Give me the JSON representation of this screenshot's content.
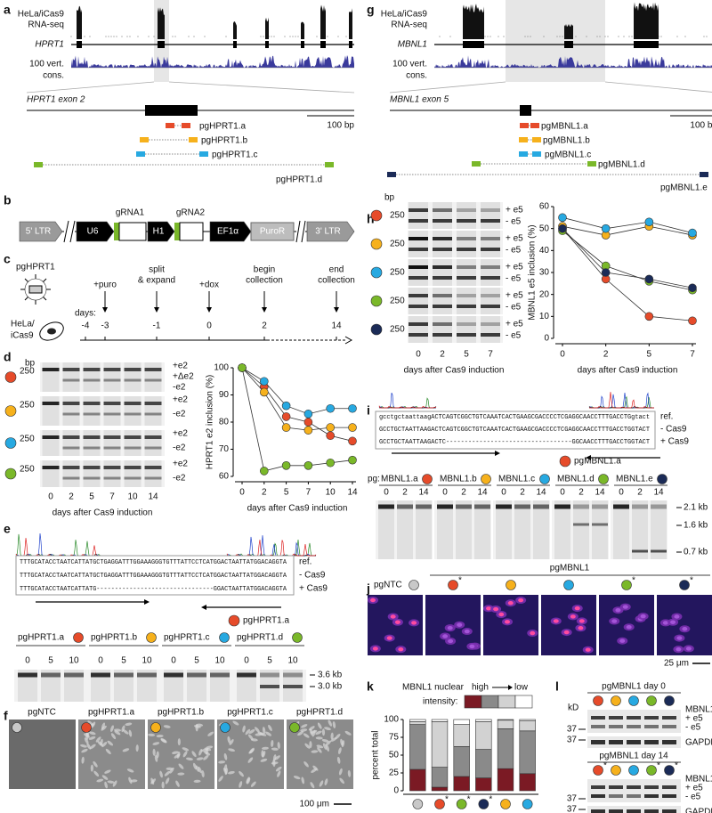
{
  "panels": {
    "letters": [
      "a",
      "b",
      "c",
      "d",
      "e",
      "f",
      "g",
      "h",
      "i",
      "j",
      "k",
      "l"
    ],
    "a": {
      "track_label": [
        "HeLa/iCas9",
        "RNA-seq"
      ],
      "gene": "HPRT1",
      "cons_label": [
        "100 vert.",
        "cons."
      ],
      "exon": "HPRT1 exon 2",
      "scale": "100 bp",
      "guides": [
        "pgHPRT1.a",
        "pgHPRT1.b",
        "pgHPRT1.c",
        "pgHPRT1.d"
      ]
    },
    "g": {
      "track_label": [
        "HeLa/iCas9",
        "RNA-seq"
      ],
      "gene": "MBNL1",
      "cons_label": [
        "100 vert.",
        "cons."
      ],
      "exon": "MBNL1 exon 5",
      "scale": "100 bp",
      "guides": [
        "pgMBNL1.a",
        "pgMBNL1.b",
        "pgMBNL1.c",
        "pgMBNL1.d",
        "pgMBNL1.e"
      ]
    },
    "b": {
      "elements": [
        "5' LTR",
        "U6",
        "gRNA1",
        "H1",
        "gRNA2",
        "EF1α",
        "PuroR",
        "3' LTR"
      ]
    },
    "c": {
      "vector": "pgHPRT1",
      "cells": [
        "HeLa/",
        "iCas9"
      ],
      "days_label": "days:",
      "days": [
        "-4",
        "-3",
        "-1",
        "0",
        "2",
        "14"
      ],
      "events": [
        [
          "+puro"
        ],
        [
          "split",
          "& expand"
        ],
        [
          "+dox"
        ],
        [
          "begin",
          "collection"
        ],
        [
          "end",
          "collection"
        ]
      ]
    },
    "d": {
      "unit": "bp",
      "sizes": [
        "250",
        "250",
        "250",
        "250"
      ],
      "band_labels": [
        [
          "+e2",
          "+Δe2",
          "-e2"
        ],
        [
          "+e2",
          "-e2"
        ],
        [
          "+e2",
          "-e2"
        ],
        [
          "+e2",
          "-e2"
        ]
      ],
      "lanes": [
        "0",
        "2",
        "5",
        "7",
        "10",
        "14"
      ],
      "x_label": "days after Cas9 induction"
    },
    "e": {
      "ref": "TTTGCATACCTAATCATTATGCTGAGGATTTGGAAAGGGTGTTTATTCCTCATGGACTAATTATGGACAGGTA",
      "minus": "TTTGCATACCTAATCATTATGCTGAGGATTTGGAAAGGGTGTTTATTCCTCATGGACTAATTATGGACAGGTA",
      "plus": "TTTGCATACCTAATCATTATG--------------------------------GGACTAATTATGGACAGGTA",
      "row_labels": [
        "ref.",
        "- Cas9",
        "+ Cas9"
      ],
      "guide": "pgHPRT1.a",
      "gel_groups": [
        "pgHPRT1.a",
        "pgHPRT1.b",
        "pgHPRT1.c",
        "pgHPRT1.d"
      ],
      "lanes": [
        "0",
        "5",
        "10"
      ],
      "sizes": [
        "3.6 kb",
        "3.0 kb"
      ]
    },
    "f": {
      "labels": [
        "pgNTC",
        "pgHPRT1.a",
        "pgHPRT1.b",
        "pgHPRT1.c",
        "pgHPRT1.d"
      ],
      "scale": "100 μm"
    },
    "h": {
      "unit": "bp",
      "sizes": [
        "250",
        "250",
        "250",
        "250",
        "250"
      ],
      "band_labels": [
        [
          "+ e5",
          "- e5"
        ],
        [
          "+ e5",
          "- e5"
        ],
        [
          "+ e5",
          "- e5"
        ],
        [
          "+ e5",
          "- e5"
        ],
        [
          "+ e5",
          "- e5"
        ]
      ],
      "lanes": [
        "0",
        "2",
        "5",
        "7"
      ],
      "x_label": "days after Cas9 induction"
    },
    "i": {
      "ref": "gcctgctaattaagACTCAGTCGGCTGTCAAATCACTGAAGCGACCCCTCGAGGCAACCTTTGACCTGgtact",
      "minus": "GCCTGCTAATTAAGACTCAGTCGGCTGTCAAATCACTGAAGCGACCCCTCGAGGCAACCTTTGACCTGGTACT",
      "plus": "GCCTGCTAATTAAGACTC----------------------------------GGCAACCTTTGACCTGGTACT",
      "row_labels": [
        "ref.",
        "- Cas9",
        "+ Cas9"
      ],
      "guide": "pgMBNL1.a",
      "gel_prefix": "pg:",
      "gel_groups": [
        "MBNL1.a",
        "MBNL1.b",
        "MBNL1.c",
        "MBNL1.d",
        "MBNL1.e"
      ],
      "lanes": [
        "0",
        "2",
        "14"
      ],
      "sizes": [
        "2.1 kb",
        "1.6 kb",
        "0.7 kb"
      ]
    },
    "j": {
      "labels": [
        "pgNTC",
        "pgMBNL1"
      ],
      "stars": [
        "*",
        "*",
        "*"
      ],
      "scale": "25 μm"
    },
    "k": {
      "legend_title": "MBNL1 nuclear",
      "legend_label": "intensity:",
      "high": "high",
      "low": "low",
      "stars": [
        "*",
        "*",
        "*"
      ]
    },
    "l": {
      "blots": [
        {
          "title": "pgMBNL1 day 0",
          "unit": "kD",
          "markers": [
            "37",
            "37"
          ],
          "labels": [
            "MBNL1",
            "+ e5",
            "- e5",
            "GAPDH"
          ]
        },
        {
          "title": "pgMBNL1 day 14",
          "markers": [
            "37",
            "37"
          ],
          "labels": [
            "MBNL1",
            "+ e5",
            "- e5",
            "GAPDH"
          ],
          "stars": [
            "*",
            "*",
            "*"
          ]
        }
      ]
    }
  },
  "chart_data": [
    {
      "type": "line",
      "y_label": "HPRT1 e2 inclusion (%)",
      "x_label": "days after Cas9 induction",
      "categories": [
        "0",
        "2",
        "5",
        "7",
        "10",
        "14"
      ],
      "ylim": [
        60,
        100
      ],
      "yticks": [
        60,
        70,
        80,
        90,
        100
      ],
      "series": [
        {
          "color": "#e64b2a",
          "values": [
            100,
            93,
            82,
            80,
            75,
            73
          ]
        },
        {
          "color": "#f6b11c",
          "values": [
            100,
            91,
            78,
            77,
            78,
            78
          ]
        },
        {
          "color": "#27a9e1",
          "values": [
            100,
            95,
            86,
            83,
            85,
            85
          ]
        },
        {
          "color": "#7ab829",
          "values": [
            100,
            62,
            64,
            64,
            65,
            66
          ]
        }
      ]
    },
    {
      "type": "line",
      "y_label": "MBNL1 e5 inclusion (%)",
      "x_label": "days after Cas9 induction",
      "categories": [
        "0",
        "2",
        "5",
        "7"
      ],
      "ylim": [
        0,
        60
      ],
      "yticks": [
        0,
        10,
        20,
        30,
        40,
        50,
        60
      ],
      "series": [
        {
          "color": "#e64b2a",
          "values": [
            50,
            27,
            10,
            8
          ]
        },
        {
          "color": "#f6b11c",
          "values": [
            51,
            47,
            51,
            47
          ]
        },
        {
          "color": "#27a9e1",
          "values": [
            55,
            50,
            53,
            48
          ]
        },
        {
          "color": "#7ab829",
          "values": [
            49,
            33,
            26,
            22
          ]
        },
        {
          "color": "#1b2b57",
          "values": [
            50,
            30,
            27,
            23
          ]
        }
      ]
    },
    {
      "type": "bar",
      "stacked": true,
      "y_label": "percent total",
      "categories": [
        null,
        null,
        null,
        null,
        null,
        null
      ],
      "category_colors": [
        "#c8c8c8",
        "#e64b2a",
        "#7ab829",
        "#1b2b57",
        "#f6b11c",
        "#27a9e1"
      ],
      "ylim": [
        0,
        100
      ],
      "yticks": [
        0,
        25,
        50,
        75,
        100
      ],
      "series": [
        {
          "color": "#7b1a24",
          "values": [
            30,
            5,
            20,
            18,
            31,
            24
          ]
        },
        {
          "color": "#8a8a8a",
          "values": [
            63,
            28,
            42,
            40,
            56,
            60
          ]
        },
        {
          "color": "#d2d2d2",
          "values": [
            4,
            64,
            31,
            39,
            12,
            14
          ]
        },
        {
          "color": "#ffffff",
          "values": [
            3,
            3,
            7,
            3,
            1,
            2
          ]
        }
      ]
    }
  ]
}
